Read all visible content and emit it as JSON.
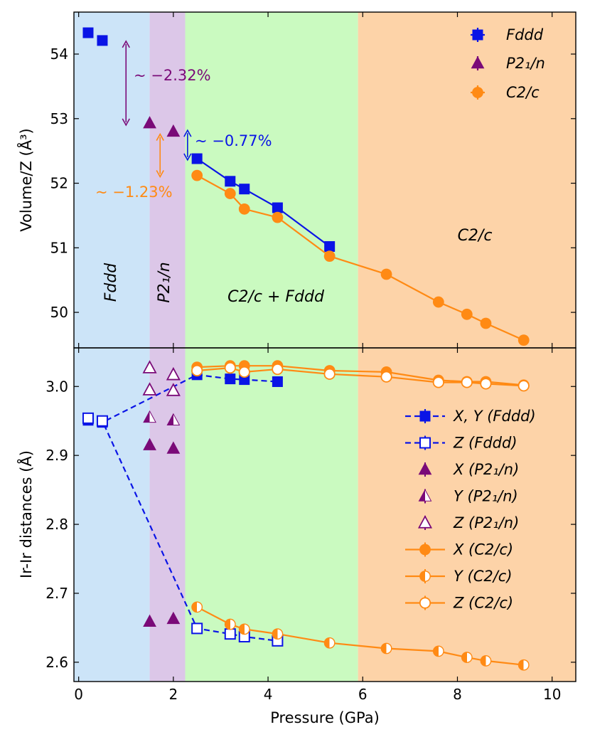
{
  "chart_data": [
    {
      "type": "scatter",
      "panel": "top",
      "ylabel": "Volume/Z (Å³)",
      "xlim": [
        -0.1,
        10.5
      ],
      "ylim": [
        49.45,
        54.65
      ],
      "yticks": [
        "50",
        "51",
        "52",
        "53",
        "54"
      ],
      "colors": {
        "fddd": "#0a14e6",
        "p21n": "#7a0a78",
        "c2c": "#ff8a14"
      },
      "regions": [
        {
          "name": "Fddd",
          "label": "Fddd",
          "from": -0.1,
          "to": 1.5,
          "color": "#cce4f8"
        },
        {
          "name": "P21n",
          "label": "P2₁/n",
          "from": 1.5,
          "to": 2.25,
          "color": "#dcc7e8"
        },
        {
          "name": "mixed",
          "label": "C2/c + Fddd",
          "from": 2.25,
          "to": 5.9,
          "color": "#cafac0"
        },
        {
          "name": "C2c",
          "label": "C2/c",
          "from": 5.9,
          "to": 10.5,
          "color": "#fdd3a8"
        }
      ],
      "series": [
        {
          "name": "Fddd",
          "label": "Fddd",
          "marker": "square",
          "color": "#0a14e6",
          "x": [
            0.2,
            0.5,
            2.5,
            3.2,
            3.5,
            4.2,
            5.3
          ],
          "y": [
            54.33,
            54.21,
            52.38,
            52.03,
            51.91,
            51.62,
            51.02
          ]
        },
        {
          "name": "P21n",
          "label": "P2₁/n",
          "marker": "triangle",
          "color": "#7a0a78",
          "x": [
            1.5,
            2.0
          ],
          "y": [
            52.93,
            52.8
          ]
        },
        {
          "name": "C2c",
          "label": "C2/c",
          "marker": "circle",
          "color": "#ff8a14",
          "x": [
            2.5,
            3.2,
            3.5,
            4.2,
            5.3,
            6.5,
            7.6,
            8.2,
            8.6,
            9.4
          ],
          "y": [
            52.12,
            51.84,
            51.6,
            51.47,
            50.87,
            50.59,
            50.16,
            49.97,
            49.83,
            49.57
          ]
        }
      ],
      "annotations": [
        {
          "name": "fddd-p21n-jump",
          "text": "~ −2.32%",
          "color": "#7a0a78"
        },
        {
          "name": "fddd-c2c-offset",
          "text": "~ −0.77%",
          "color": "#0a14e6"
        },
        {
          "name": "p21n-c2c-jump",
          "text": "~ −1.23%",
          "color": "#ff8a14"
        }
      ]
    },
    {
      "type": "scatter",
      "panel": "bottom",
      "xlabel": "Pressure (GPa)",
      "ylabel": "Ir-Ir distances (Å)",
      "xlim": [
        -0.1,
        10.5
      ],
      "ylim": [
        2.572,
        3.056
      ],
      "xticks": [
        "0",
        "2",
        "4",
        "6",
        "8",
        "10"
      ],
      "yticks": [
        "2.6",
        "2.7",
        "2.8",
        "2.9",
        "3.0"
      ],
      "series": [
        {
          "name": "XY-Fddd",
          "label": "X, Y (Fddd)",
          "marker": "square-filled",
          "line": "dashed",
          "color": "#0a14e6",
          "x": [
            0.2,
            0.5,
            2.5,
            3.2,
            3.5,
            4.2
          ],
          "y": [
            2.951,
            2.948,
            3.017,
            3.011,
            3.01,
            3.007
          ]
        },
        {
          "name": "Z-Fddd",
          "label": "Z (Fddd)",
          "marker": "square-open",
          "line": "dashed",
          "color": "#0a14e6",
          "x": [
            0.2,
            0.5,
            2.5,
            3.2,
            3.5,
            4.2
          ],
          "y": [
            2.954,
            2.95,
            2.649,
            2.641,
            2.637,
            2.631
          ]
        },
        {
          "name": "X-P21n",
          "label": "X (P2₁/n)",
          "marker": "triangle-filled",
          "line": "none",
          "color": "#7a0a78",
          "x": [
            1.5,
            2.0,
            1.5,
            2.0
          ],
          "y": [
            2.915,
            2.91,
            2.659,
            2.663
          ]
        },
        {
          "name": "Y-P21n",
          "label": "Y (P2₁/n)",
          "marker": "triangle-half",
          "line": "none",
          "color": "#7a0a78",
          "x": [
            1.5,
            2.0
          ],
          "y": [
            2.955,
            2.951
          ]
        },
        {
          "name": "Z-P21n",
          "label": "Z (P2₁/n)",
          "marker": "triangle-open",
          "line": "none",
          "color": "#7a0a78",
          "x": [
            1.5,
            2.0,
            1.5,
            2.0
          ],
          "y": [
            2.995,
            2.994,
            3.027,
            3.017
          ]
        },
        {
          "name": "X-C2c",
          "label": "X (C2/c)",
          "marker": "circle-filled",
          "line": "solid",
          "color": "#ff8a14",
          "x": [
            2.5,
            3.2,
            3.5,
            4.2,
            5.3,
            6.5,
            7.6,
            8.2,
            8.6,
            9.4
          ],
          "y": [
            3.028,
            3.03,
            3.03,
            3.03,
            3.023,
            3.021,
            3.009,
            3.007,
            3.007,
            3.002
          ]
        },
        {
          "name": "Y-C2c",
          "label": "Y (C2/c)",
          "marker": "circle-half",
          "line": "solid",
          "color": "#ff8a14",
          "x": [
            2.5,
            3.2,
            3.5,
            4.2,
            5.3,
            6.5,
            7.6,
            8.2,
            8.6,
            9.4
          ],
          "y": [
            2.68,
            2.655,
            2.648,
            2.641,
            2.628,
            2.62,
            2.616,
            2.607,
            2.602,
            2.596
          ]
        },
        {
          "name": "Z-C2c",
          "label": "Z (C2/c)",
          "marker": "circle-open",
          "line": "solid",
          "color": "#ff8a14",
          "x": [
            2.5,
            3.2,
            3.5,
            4.2,
            5.3,
            6.5,
            7.6,
            8.2,
            8.6,
            9.4
          ],
          "y": [
            3.023,
            3.027,
            3.021,
            3.025,
            3.018,
            3.014,
            3.006,
            3.006,
            3.004,
            3.001
          ]
        }
      ]
    }
  ]
}
